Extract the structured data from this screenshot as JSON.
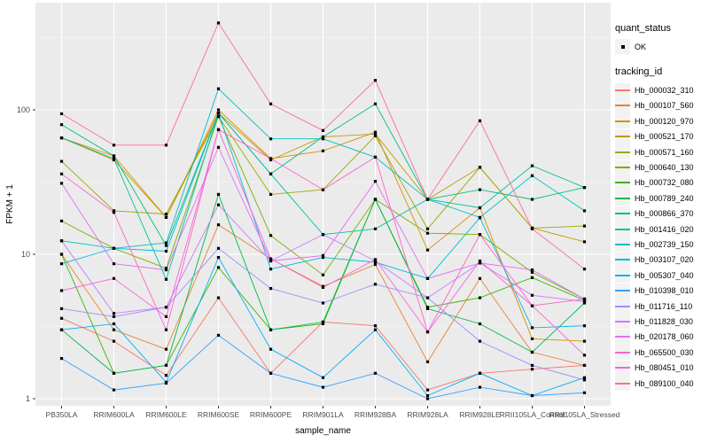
{
  "colors": {
    "panel_bg": "#EBEBEB",
    "grid_major": "#FFFFFF",
    "grid_minor": "#F7F7F7",
    "tick_text": "#4D4D4D",
    "axis_title": "#000000",
    "key_bg": "#F2F2F2",
    "point": "#000000"
  },
  "legend": {
    "quant_status_title": "quant_status",
    "quant_status_items": [
      {
        "label": "OK"
      }
    ],
    "tracking_id_title": "tracking_id"
  },
  "chart_data": {
    "type": "line",
    "title": "",
    "xlabel": "sample_name",
    "ylabel": "FPKM + 1",
    "y_scale": "log10",
    "y_ticks": [
      1,
      10,
      100
    ],
    "y_minor_ticks": [
      3.162,
      31.62,
      316.2
    ],
    "ylim": [
      1,
      550
    ],
    "grid": true,
    "legend_position": "right",
    "point_shape": "square",
    "categories": [
      "PB350LA",
      "RRIM600LA",
      "RRIM600LE",
      "RRIM600SE",
      "RRIM600PE",
      "RRIM901LA",
      "RRIM928BA",
      "RRIM928LA",
      "RRIM928LE",
      "RRII105LA_Control",
      "RRII105LA_Stressed"
    ],
    "series": [
      {
        "name": "Hb_000032_310",
        "color": "#F8766D",
        "values": [
          3.6,
          2.5,
          1.45,
          5.0,
          1.5,
          3.4,
          3.2,
          1.15,
          1.5,
          1.6,
          1.7
        ]
      },
      {
        "name": "Hb_000107_560",
        "color": "#EA8331",
        "values": [
          10,
          3.0,
          2.2,
          16,
          9.3,
          6.0,
          8.5,
          1.8,
          6.8,
          2.1,
          1.7
        ]
      },
      {
        "name": "Hb_000120_970",
        "color": "#D89000",
        "values": [
          64,
          48,
          18,
          100,
          46,
          52,
          70,
          10.7,
          21,
          2.6,
          2.5
        ]
      },
      {
        "name": "Hb_000521_170",
        "color": "#C09B00",
        "values": [
          64,
          45,
          18,
          95,
          45,
          65,
          68,
          24,
          40,
          15.2,
          12.2
        ]
      },
      {
        "name": "Hb_000571_160",
        "color": "#A3A500",
        "values": [
          44,
          20,
          19,
          90,
          26,
          28,
          66,
          15,
          40,
          15.2,
          15.7
        ]
      },
      {
        "name": "Hb_000640_130",
        "color": "#7CAE00",
        "values": [
          17,
          11,
          8,
          90,
          13.5,
          7.2,
          24,
          14,
          13.7,
          7.5,
          4.9
        ]
      },
      {
        "name": "Hb_000732_080",
        "color": "#39B600",
        "values": [
          10,
          1.5,
          1.7,
          8.1,
          3.0,
          3.3,
          24,
          4.3,
          5.0,
          6.9,
          4.8
        ]
      },
      {
        "name": "Hb_000789_240",
        "color": "#00BB4E",
        "values": [
          3.0,
          1.5,
          1.7,
          26,
          3.0,
          3.4,
          24,
          4.2,
          3.3,
          2.1,
          4.6
        ]
      },
      {
        "name": "Hb_000866_370",
        "color": "#00BF7D",
        "values": [
          79,
          48,
          11.5,
          95,
          36,
          65,
          110,
          24,
          28,
          24,
          29
        ]
      },
      {
        "name": "Hb_001416_020",
        "color": "#00C1A3",
        "values": [
          64,
          46,
          6.7,
          95,
          36,
          13.7,
          15,
          24,
          21,
          41,
          29
        ]
      },
      {
        "name": "Hb_002739_150",
        "color": "#00BFC4",
        "values": [
          12.4,
          11,
          12,
          140,
          63,
          63,
          47,
          24,
          18,
          35,
          20
        ]
      },
      {
        "name": "Hb_003107_020",
        "color": "#00BAE0",
        "values": [
          8.6,
          11,
          10.5,
          95,
          7.9,
          9.5,
          8.8,
          6.8,
          17.9,
          3.1,
          3.2
        ]
      },
      {
        "name": "Hb_005307_040",
        "color": "#00B0F6",
        "values": [
          3.0,
          3.3,
          1.3,
          9.5,
          2.2,
          1.4,
          3.0,
          1.05,
          1.5,
          1.05,
          1.4
        ]
      },
      {
        "name": "Hb_010398_010",
        "color": "#35A2FF",
        "values": [
          1.9,
          1.15,
          1.28,
          2.75,
          1.5,
          1.2,
          1.5,
          1.0,
          1.2,
          1.05,
          1.1
        ]
      },
      {
        "name": "Hb_011716_110",
        "color": "#9590FF",
        "values": [
          4.2,
          3.7,
          4.3,
          11,
          5.8,
          4.6,
          6.2,
          5.0,
          2.5,
          1.7,
          1.35
        ]
      },
      {
        "name": "Hb_011828_030",
        "color": "#C77CFF",
        "values": [
          12.4,
          3.9,
          4.3,
          22,
          9.0,
          13.7,
          9.0,
          5.0,
          8.7,
          5.2,
          4.7
        ]
      },
      {
        "name": "Hb_020178_060",
        "color": "#E76BF3",
        "values": [
          31,
          8.6,
          7.8,
          55,
          9.0,
          9.8,
          32,
          6.8,
          8.7,
          7.8,
          4.9
        ]
      },
      {
        "name": "Hb_065500_030",
        "color": "#FA62DB",
        "values": [
          5.6,
          6.8,
          3.7,
          73,
          9.3,
          5.9,
          9.2,
          2.9,
          9.0,
          4.4,
          2.0
        ]
      },
      {
        "name": "Hb_080451_010",
        "color": "#FF61CC",
        "values": [
          36,
          19.5,
          3.0,
          73,
          46,
          28,
          47,
          2.9,
          13.7,
          4.4,
          4.9
        ]
      },
      {
        "name": "Hb_089100_040",
        "color": "#FF6A98",
        "values": [
          94,
          57,
          57,
          400,
          110,
          72,
          160,
          24,
          84,
          15,
          7.9
        ]
      }
    ]
  }
}
